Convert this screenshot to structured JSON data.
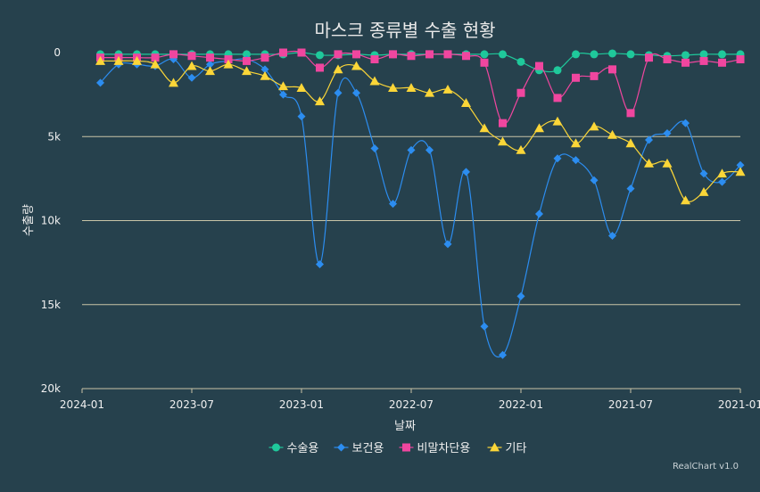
{
  "chart_data": {
    "type": "line",
    "title": "마스크 종류별 수출 현황",
    "xlabel": "날짜",
    "ylabel": "수출량",
    "x_axis_reversed": true,
    "y_axis_reversed": true,
    "ylim": [
      0,
      20000
    ],
    "y_ticks": [
      0,
      5000,
      10000,
      15000,
      20000
    ],
    "y_tick_labels": [
      "0",
      "5k",
      "10k",
      "15k",
      "20k"
    ],
    "x_range": [
      "2024-01",
      "2021-01"
    ],
    "x_ticks": [
      "2024-01",
      "2023-07",
      "2023-01",
      "2022-07",
      "2022-01",
      "2021-07",
      "2021-01"
    ],
    "grid": true,
    "legend_position": "bottom",
    "credit": "RealChart v1.0",
    "colors": {
      "background": "#26414d",
      "grid": "#c9c4a7",
      "text": "#f0f0f0"
    },
    "dates": [
      "2023-12",
      "2023-11",
      "2023-10",
      "2023-09",
      "2023-08",
      "2023-07",
      "2023-06",
      "2023-05",
      "2023-04",
      "2023-03",
      "2023-02",
      "2023-01",
      "2022-12",
      "2022-11",
      "2022-10",
      "2022-09",
      "2022-08",
      "2022-07",
      "2022-06",
      "2022-05",
      "2022-04",
      "2022-03",
      "2022-02",
      "2022-01",
      "2021-12",
      "2021-11",
      "2021-10",
      "2021-09",
      "2021-08",
      "2021-07",
      "2021-06",
      "2021-05",
      "2021-04",
      "2021-03",
      "2021-02",
      "2021-01"
    ],
    "series": [
      {
        "name": "수술용",
        "color": "#1fc99b",
        "marker": "circle",
        "values": [
          100,
          100,
          100,
          100,
          100,
          100,
          100,
          100,
          100,
          100,
          100,
          0,
          150,
          150,
          100,
          150,
          100,
          100,
          100,
          100,
          100,
          100,
          100,
          550,
          1050,
          1050,
          100,
          100,
          50,
          100,
          150,
          200,
          150,
          100,
          100,
          100
        ]
      },
      {
        "name": "보건용",
        "color": "#2c8df0",
        "marker": "diamond",
        "values": [
          1800,
          700,
          700,
          800,
          400,
          1500,
          700,
          500,
          400,
          1000,
          2500,
          3800,
          12600,
          2400,
          2400,
          5700,
          9000,
          5800,
          5800,
          11400,
          7100,
          16300,
          18000,
          14500,
          9600,
          6300,
          6400,
          7600,
          10900,
          8100,
          5200,
          4800,
          4200,
          7200,
          7700,
          6700
        ]
      },
      {
        "name": "비말차단용",
        "color": "#f0469f",
        "marker": "square",
        "values": [
          300,
          300,
          300,
          300,
          100,
          200,
          300,
          400,
          500,
          300,
          0,
          0,
          900,
          100,
          100,
          400,
          100,
          200,
          100,
          100,
          200,
          600,
          4200,
          2400,
          800,
          2700,
          1500,
          1400,
          1000,
          3600,
          300,
          400,
          600,
          500,
          600,
          400
        ]
      },
      {
        "name": "기타",
        "color": "#fbd638",
        "marker": "triangle",
        "values": [
          500,
          500,
          500,
          700,
          1800,
          800,
          1100,
          700,
          1100,
          1400,
          2000,
          2100,
          2900,
          1000,
          800,
          1700,
          2100,
          2100,
          2400,
          2200,
          3000,
          4500,
          5300,
          5800,
          4500,
          4100,
          5400,
          4400,
          4900,
          5400,
          6600,
          6600,
          8800,
          8300,
          7200,
          7100
        ]
      }
    ]
  }
}
